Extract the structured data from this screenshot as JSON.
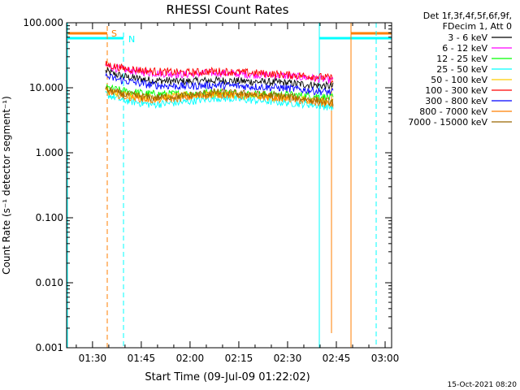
{
  "chart_data": {
    "type": "line",
    "title": "RHESSI Count Rates",
    "xlabel": "Start Time (09-Jul-09 01:22:02)",
    "ylabel": "Count Rate (s⁻¹ detector segment⁻¹)",
    "yscale": "log",
    "ylim": [
      0.001,
      100
    ],
    "y_tick_labels": [
      "0.001",
      "0.010",
      "0.100",
      "1.000",
      "10.000",
      "100.000"
    ],
    "y_tick_values": [
      0.001,
      0.01,
      0.1,
      1,
      10,
      100
    ],
    "xlim": [
      "01:22:02",
      "03:02:00"
    ],
    "x_tick_labels": [
      "01:30",
      "01:45",
      "02:00",
      "02:15",
      "02:30",
      "02:45",
      "03:00"
    ],
    "x": [
      "01:34:00",
      "01:39:00",
      "01:48:00",
      "01:58:00",
      "02:08:00",
      "02:18:00",
      "02:28:00",
      "02:38:00",
      "02:44:00"
    ],
    "series": [
      {
        "name": "3 - 6 keV",
        "color": "#000000",
        "values": [
          18,
          15,
          13,
          12.5,
          13,
          12.5,
          12,
          11,
          10.5
        ]
      },
      {
        "name": "6 - 12 keV",
        "color": "#ff00ff",
        "values": [
          22,
          19,
          17,
          16,
          17,
          16,
          15.5,
          14,
          13
        ]
      },
      {
        "name": "12 - 25 keV",
        "color": "#00ff00",
        "values": [
          10,
          9,
          8,
          8,
          8.5,
          8,
          7.8,
          7.5,
          7
        ]
      },
      {
        "name": "25 - 50 keV",
        "color": "#00ffff",
        "values": [
          8,
          6.5,
          5.5,
          6,
          7,
          6.5,
          6,
          5.5,
          5
        ]
      },
      {
        "name": "50 - 100 keV",
        "color": "#ffcc00",
        "values": [
          9,
          8,
          7,
          7.5,
          8,
          7.5,
          7,
          6.5,
          6
        ]
      },
      {
        "name": "100 - 300 keV",
        "color": "#ff0000",
        "values": [
          23,
          20,
          18,
          17,
          18,
          17,
          16,
          15,
          14
        ]
      },
      {
        "name": "300 - 800 keV",
        "color": "#0000ff",
        "values": [
          15,
          13,
          11,
          10.5,
          11,
          10.5,
          10,
          9,
          8.5
        ]
      },
      {
        "name": "800 - 7000 keV",
        "color": "#ff7f00",
        "values": [
          9,
          7.5,
          6.5,
          7,
          8,
          7.5,
          7,
          6,
          5.5
        ]
      },
      {
        "name": "7000 - 15000 keV",
        "color": "#996600",
        "values": [
          9.5,
          8,
          7,
          7.5,
          8.5,
          8,
          7.5,
          6.5,
          6
        ]
      }
    ],
    "legend_header": [
      "Det 1f,3f,4f,5f,6f,9f,",
      "FDecim 1, Att 0"
    ],
    "legend_position": "outside-top-right",
    "markers": [
      {
        "label": "S",
        "time": "01:34:30",
        "color": "#ff7f00",
        "style": "dashed"
      },
      {
        "label": "N",
        "time": "01:39:30",
        "color": "#00ffff",
        "style": "dashed"
      }
    ],
    "footer_text": "15-Oct-2021 08:20"
  }
}
